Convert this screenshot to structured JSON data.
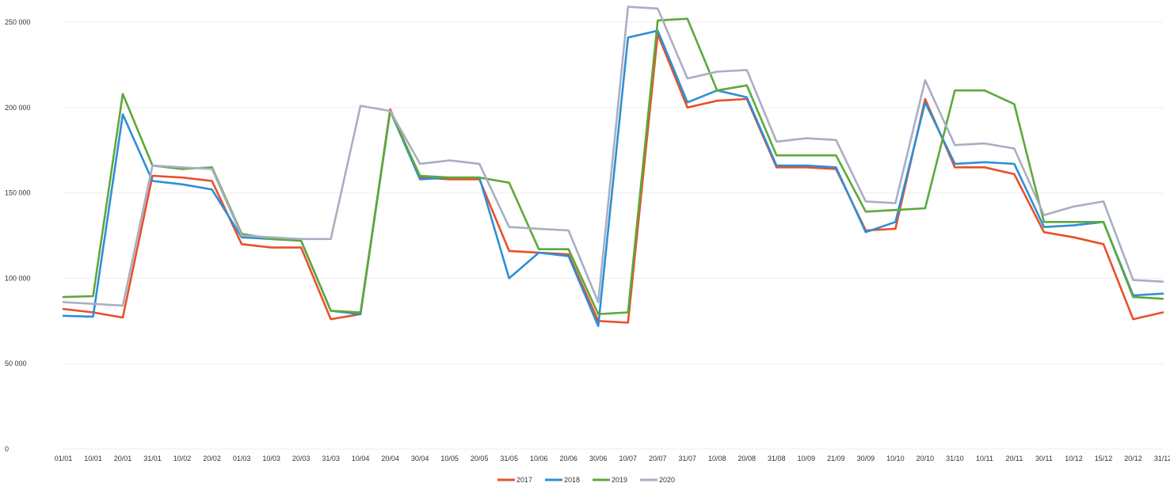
{
  "chart_data": {
    "type": "line",
    "title": "",
    "xlabel": "",
    "ylabel": "",
    "ylim": [
      0,
      250000
    ],
    "yticks": [
      0,
      50000,
      100000,
      150000,
      200000,
      250000
    ],
    "ytick_labels": [
      "0",
      "50 000",
      "100 000",
      "150 000",
      "200 000",
      "250 000"
    ],
    "grid": true,
    "legend_position": "bottom",
    "categories": [
      "01/01",
      "10/01",
      "20/01",
      "31/01",
      "10/02",
      "20/02",
      "01/03",
      "10/03",
      "20/03",
      "31/03",
      "10/04",
      "20/04",
      "30/04",
      "10/05",
      "20/05",
      "31/05",
      "10/06",
      "20/06",
      "30/06",
      "10/07",
      "20/07",
      "31/07",
      "10/08",
      "20/08",
      "31/08",
      "10/09",
      "21/09",
      "30/09",
      "10/10",
      "20/10",
      "31/10",
      "10/11",
      "20/11",
      "30/11",
      "10/12",
      "15/12",
      "20/12",
      "31/12"
    ],
    "series": [
      {
        "name": "2017",
        "color": "#e8502a",
        "values": [
          82000,
          80000,
          77000,
          160000,
          159000,
          157000,
          120000,
          118000,
          118000,
          76000,
          79000,
          199000,
          159000,
          158000,
          158000,
          116000,
          115000,
          114000,
          75000,
          74000,
          243000,
          200000,
          204000,
          205000,
          165000,
          165000,
          164000,
          128000,
          129000,
          205000,
          165000,
          165000,
          161000,
          127000,
          124000,
          120000,
          76000,
          80000
        ]
      },
      {
        "name": "2018",
        "color": "#2e8fd6",
        "values": [
          78000,
          77500,
          196000,
          157000,
          155000,
          152000,
          124000,
          123000,
          122000,
          81000,
          79000,
          198000,
          158000,
          159000,
          159000,
          100000,
          115000,
          113000,
          72000,
          241000,
          245000,
          203000,
          210000,
          206000,
          166000,
          166000,
          165000,
          127000,
          133000,
          203000,
          167000,
          168000,
          167000,
          130000,
          131000,
          133000,
          90000,
          91000
        ]
      },
      {
        "name": "2019",
        "color": "#5ea83a",
        "values": [
          89000,
          89500,
          208000,
          166000,
          164000,
          165000,
          126000,
          123000,
          122000,
          81000,
          80000,
          198000,
          160000,
          159000,
          159000,
          156000,
          117000,
          117000,
          79000,
          80000,
          251000,
          252000,
          210000,
          213000,
          172000,
          172000,
          172000,
          139000,
          140000,
          141000,
          210000,
          210000,
          202000,
          133000,
          133000,
          133000,
          89000,
          88000
        ]
      },
      {
        "name": "2020",
        "color": "#a8aec4",
        "values": [
          86000,
          85000,
          84000,
          166000,
          165000,
          164000,
          125000,
          124000,
          123000,
          123000,
          201000,
          198000,
          167000,
          169000,
          167000,
          130000,
          129000,
          128000,
          86000,
          259000,
          258000,
          217000,
          221000,
          222000,
          180000,
          182000,
          181000,
          145000,
          144000,
          216000,
          178000,
          179000,
          176000,
          137000,
          142000,
          145000,
          99000,
          98000
        ]
      }
    ]
  }
}
